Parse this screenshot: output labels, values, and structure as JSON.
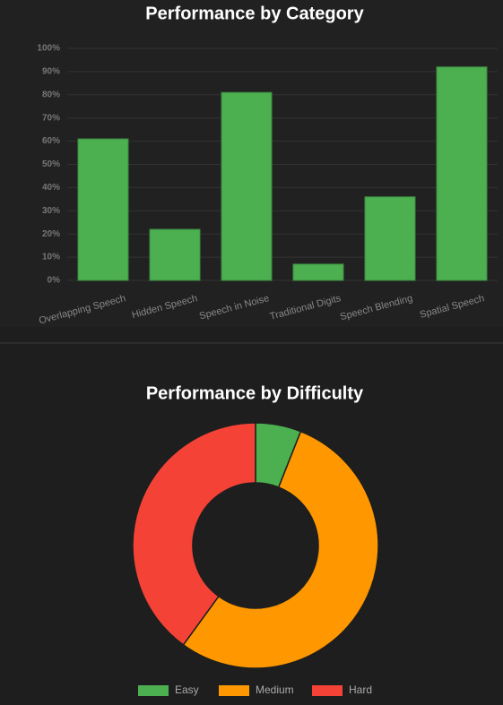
{
  "chart_data": [
    {
      "type": "bar",
      "title": "Performance by Category",
      "categories": [
        "Overlapping Speech",
        "Hidden Speech",
        "Speech in Noise",
        "Traditional Digits",
        "Speech Blending",
        "Spatial Speech"
      ],
      "values": [
        61,
        22,
        81,
        7,
        36,
        92
      ],
      "color": "#4caf50",
      "ylim": [
        0,
        100
      ],
      "yticks": [
        {
          "value": 0,
          "label": "0%"
        },
        {
          "value": 10,
          "label": "10%"
        },
        {
          "value": 20,
          "label": "20%"
        },
        {
          "value": 30,
          "label": "30%"
        },
        {
          "value": 40,
          "label": "40%"
        },
        {
          "value": 50,
          "label": "50%"
        },
        {
          "value": 60,
          "label": "60%"
        },
        {
          "value": 70,
          "label": "70%"
        },
        {
          "value": 80,
          "label": "80%"
        },
        {
          "value": 90,
          "label": "90%"
        },
        {
          "value": 100,
          "label": "100%"
        }
      ],
      "grid": true
    },
    {
      "type": "doughnut",
      "title": "Performance by Difficulty",
      "categories": [
        "Easy",
        "Medium",
        "Hard"
      ],
      "values": [
        6,
        54,
        40
      ],
      "colors": [
        "#4caf50",
        "#ff9800",
        "#f44336"
      ],
      "legend": "bottom"
    }
  ]
}
